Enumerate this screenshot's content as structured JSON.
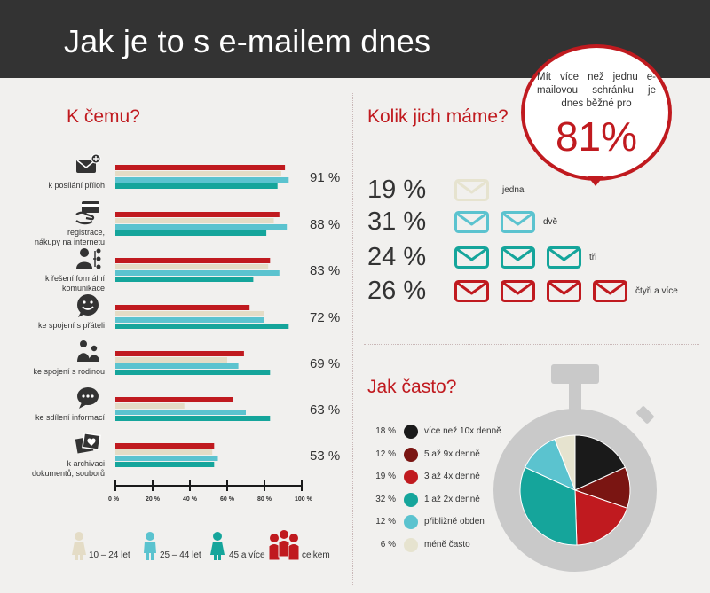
{
  "header": {
    "title": "Jak je to s e-mailem dnes"
  },
  "callout": {
    "text": "Mít více než jednu e-mailovou schránku je dnes běžné pro",
    "value": "81%"
  },
  "sections": {
    "purpose": "K čemu?",
    "count": "Kolik jich máme?",
    "frequency": "Jak často?"
  },
  "colors": {
    "accent": "#c01a1f",
    "light": "#e4dcc6",
    "teal_light": "#5bc3cf",
    "teal": "#15a59b",
    "dark": "#1a1a1a",
    "dark_red": "#7a1512",
    "pale": "#e6e3cf",
    "ring": "#c9c9c9"
  },
  "chart_data": [
    {
      "type": "bar",
      "orientation": "horizontal",
      "categories": [
        "k posílání příloh",
        "registrace, nákupy na internetu",
        "k řešení formální komunikace",
        "ke spojení s přáteli",
        "ke spojení s rodinou",
        "ke sdílení informací",
        "k archivaci dokumentů, souborů"
      ],
      "category_lines": [
        [
          "k posílání příloh"
        ],
        [
          "registrace,",
          "nákupy na internetu"
        ],
        [
          "k řešení formální",
          "komunikace"
        ],
        [
          "ke spojení s přáteli"
        ],
        [
          "ke spojení s rodinou"
        ],
        [
          "ke sdílení informací"
        ],
        [
          "k archivaci",
          "dokumentů, souborů"
        ]
      ],
      "category_icons": [
        "envelope-plus-icon",
        "card-hand-icon",
        "person-network-icon",
        "smile-bubble-icon",
        "family-icon",
        "chat-bubble-icon",
        "photo-heart-icon"
      ],
      "totals": [
        "91 %",
        "88 %",
        "83 %",
        "72 %",
        "69 %",
        "63 %",
        "53 %"
      ],
      "series": [
        {
          "name": "celkem",
          "color": "#c01a1f",
          "values": [
            91,
            88,
            83,
            72,
            69,
            63,
            53
          ]
        },
        {
          "name": "10 – 24 let",
          "color": "#e4dcc6",
          "values": [
            89,
            85,
            82,
            80,
            60,
            37,
            52
          ]
        },
        {
          "name": "25 – 44 let",
          "color": "#5bc3cf",
          "values": [
            93,
            92,
            88,
            80,
            66,
            70,
            55
          ]
        },
        {
          "name": "45 a více",
          "color": "#15a59b",
          "values": [
            87,
            81,
            74,
            93,
            83,
            83,
            53
          ]
        }
      ],
      "xlim": [
        0,
        100
      ],
      "xticks": [
        "0 %",
        "20 %",
        "40 %",
        "60 %",
        "80 %",
        "100 %"
      ],
      "legend": [
        {
          "label": "10 – 24 let",
          "icon": "person-light-icon"
        },
        {
          "label": "25 – 44 let",
          "icon": "person-lightblue-icon"
        },
        {
          "label": "45 a více",
          "icon": "person-teal-icon"
        },
        {
          "label": "celkem",
          "icon": "group-red-icon"
        }
      ]
    },
    {
      "type": "table",
      "rows": [
        {
          "pct": "19 %",
          "count": 1,
          "label": "jedna",
          "color": "#e6e3cf"
        },
        {
          "pct": "31 %",
          "count": 2,
          "label": "dvě",
          "color": "#5bc3cf"
        },
        {
          "pct": "24 %",
          "count": 3,
          "label": "tři",
          "color": "#15a59b"
        },
        {
          "pct": "26 %",
          "count": 4,
          "label": "čtyři a více",
          "color": "#c01a1f"
        }
      ]
    },
    {
      "type": "pie",
      "slices": [
        {
          "label": "více než 10x denně",
          "pct_label": "18 %",
          "value": 18,
          "color": "#1a1a1a"
        },
        {
          "label": "5 až 9x denně",
          "pct_label": "12 %",
          "value": 12,
          "color": "#7a1512"
        },
        {
          "label": "3 až 4x denně",
          "pct_label": "19 %",
          "value": 19,
          "color": "#c01a1f"
        },
        {
          "label": "1 až 2x denně",
          "pct_label": "32 %",
          "value": 32,
          "color": "#15a59b"
        },
        {
          "label": "přibližně obden",
          "pct_label": "12 %",
          "value": 12,
          "color": "#5bc3cf"
        },
        {
          "label": "méně často",
          "pct_label": "6 %",
          "value": 6,
          "color": "#e6e3cf"
        }
      ]
    }
  ]
}
